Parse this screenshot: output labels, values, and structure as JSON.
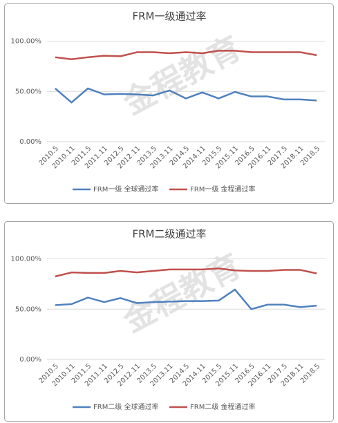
{
  "chart_data": [
    {
      "type": "line",
      "title": "FRM一级通过率",
      "watermark": "金程教育",
      "categories": [
        "2010.5",
        "2010.11",
        "2011.5",
        "2011.11",
        "2012.5",
        "2012.11",
        "2013.5",
        "2013.11",
        "2014.5",
        "2014.11",
        "2015.5",
        "2015.11",
        "2016.5",
        "2016.11",
        "2017.5",
        "2018.11",
        "2018.5"
      ],
      "series": [
        {
          "name": "FRM一级 全球通过率",
          "color": "#4f81bd",
          "values": [
            53,
            39,
            53,
            47,
            47.5,
            47,
            46,
            51,
            43,
            49,
            43,
            49.5,
            45,
            45,
            42,
            42,
            41
          ]
        },
        {
          "name": "FRM一级 金程通过率",
          "color": "#c0504d",
          "values": [
            84,
            82,
            84,
            85.5,
            85,
            89,
            89,
            88,
            89,
            88,
            90.5,
            90.5,
            89,
            89,
            89,
            89,
            86
          ]
        }
      ],
      "ylim": [
        0,
        110
      ],
      "yticks": [
        {
          "value": 0,
          "label": "0.00%"
        },
        {
          "value": 50,
          "label": "50.00%"
        },
        {
          "value": 100,
          "label": "100.00%"
        }
      ],
      "grid": true,
      "legend": "bottom"
    },
    {
      "type": "line",
      "title": "FRM二级通过率",
      "watermark": "金程教育",
      "categories": [
        "2010.5",
        "2010.11",
        "2011.5",
        "2011.11",
        "2012.5",
        "2012.11",
        "2013.5",
        "2013.11",
        "2014.5",
        "2014.11",
        "2015.5",
        "2015.11",
        "2016.5",
        "2016.11",
        "2017.5",
        "2018.11",
        "2018.5"
      ],
      "series": [
        {
          "name": "FRM二级 全球通过率",
          "color": "#4f81bd",
          "values": [
            54,
            55,
            61.5,
            57,
            61,
            56,
            57,
            57.5,
            58,
            58,
            58.5,
            69.5,
            50,
            54.5,
            54.5,
            52,
            53.5
          ]
        },
        {
          "name": "FRM二级 金程通过率",
          "color": "#c0504d",
          "values": [
            82.5,
            86.5,
            86,
            86,
            88,
            86.5,
            88,
            89.5,
            89.5,
            89.5,
            90.5,
            88.5,
            88,
            88,
            89,
            89,
            85.5
          ]
        }
      ],
      "ylim": [
        0,
        110
      ],
      "yticks": [
        {
          "value": 0,
          "label": "0.00%"
        },
        {
          "value": 50,
          "label": "50.00%"
        },
        {
          "value": 100,
          "label": "100.00%"
        }
      ],
      "grid": true,
      "legend": "bottom"
    }
  ]
}
